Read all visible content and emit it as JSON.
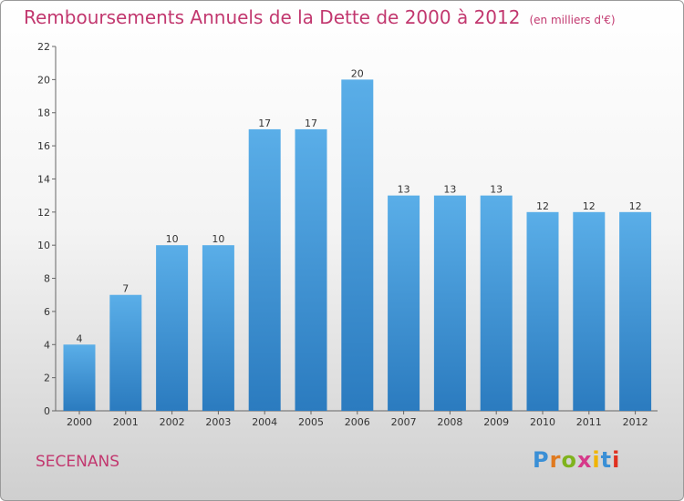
{
  "header": {
    "title": "Remboursements Annuels de la Dette de 2000 à 2012",
    "unit": "(en milliers d'€)"
  },
  "footer": {
    "city": "SECENANS",
    "logo": "Proxiti"
  },
  "colors": {
    "bar_light": "#5aaee8",
    "bar_dark": "#2b7bbf",
    "title": "#c2386f"
  },
  "chart_data": {
    "type": "bar",
    "title": "Remboursements Annuels de la Dette de 2000 à 2012",
    "subtitle": "(en milliers d'€)",
    "categories": [
      "2000",
      "2001",
      "2002",
      "2003",
      "2004",
      "2005",
      "2006",
      "2007",
      "2008",
      "2009",
      "2010",
      "2011",
      "2012"
    ],
    "values": [
      4,
      7,
      10,
      10,
      17,
      17,
      20,
      13,
      13,
      13,
      12,
      12,
      12
    ],
    "ylim": [
      0,
      22
    ],
    "yticks": [
      0,
      2,
      4,
      6,
      8,
      10,
      12,
      14,
      16,
      18,
      20,
      22
    ],
    "grid": false,
    "legend": "none"
  }
}
